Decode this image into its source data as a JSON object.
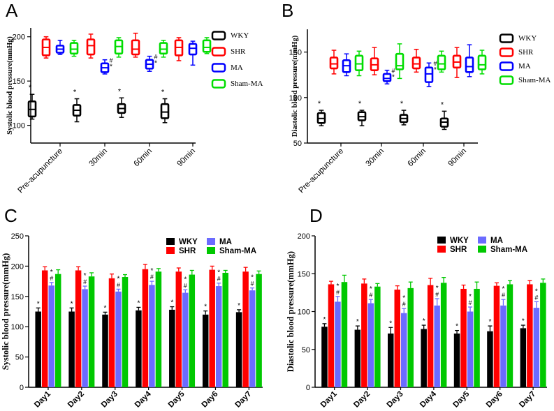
{
  "colors": {
    "wky": "#000000",
    "shr": "#ff0000",
    "ma_box": "#0000ff",
    "ma_bar": "#6b6bff",
    "sham": "#00dd00",
    "sham_bar": "#00c800",
    "axis": "#000000"
  },
  "chart_data": [
    {
      "panel": "A",
      "type": "box",
      "title": "",
      "xlabel": "",
      "ylabel": "Systolic blood pressure(mmHg)",
      "ylim": [
        80,
        210
      ],
      "yticks": [
        100,
        150,
        200
      ],
      "categories": [
        "Pre-acupuncture",
        "30min",
        "60min",
        "90min"
      ],
      "legend": [
        "WKY",
        "SHR",
        "MA",
        "Sham-MA"
      ],
      "legend_position": "right",
      "series": [
        {
          "name": "WKY",
          "boxes": [
            {
              "min": 107,
              "q1": 110,
              "median": 118,
              "q3": 127,
              "max": 135,
              "marks": "*"
            },
            {
              "min": 104,
              "q1": 111,
              "median": 117,
              "q3": 123,
              "max": 130,
              "marks": "*"
            },
            {
              "min": 109,
              "q1": 114,
              "median": 119,
              "q3": 124,
              "max": 131,
              "marks": "*"
            },
            {
              "min": 103,
              "q1": 108,
              "median": 115,
              "q3": 124,
              "max": 130,
              "marks": "*"
            }
          ]
        },
        {
          "name": "SHR",
          "boxes": [
            {
              "min": 176,
              "q1": 179,
              "median": 188,
              "q3": 197,
              "max": 200,
              "marks": ""
            },
            {
              "min": 176,
              "q1": 180,
              "median": 190,
              "q3": 197,
              "max": 203,
              "marks": ""
            },
            {
              "min": 177,
              "q1": 180,
              "median": 186,
              "q3": 196,
              "max": 204,
              "marks": ""
            },
            {
              "min": 173,
              "q1": 179,
              "median": 188,
              "q3": 196,
              "max": 199,
              "marks": ""
            }
          ]
        },
        {
          "name": "MA",
          "boxes": [
            {
              "min": 180,
              "q1": 182,
              "median": 186,
              "q3": 190,
              "max": 196,
              "marks": ""
            },
            {
              "min": 158,
              "q1": 160,
              "median": 165,
              "q3": 170,
              "max": 174,
              "marks": "#*"
            },
            {
              "min": 161,
              "q1": 164,
              "median": 169,
              "q3": 174,
              "max": 178,
              "marks": "#*"
            },
            {
              "min": 168,
              "q1": 180,
              "median": 187,
              "q3": 192,
              "max": 195,
              "marks": ""
            }
          ]
        },
        {
          "name": "Sham-MA",
          "boxes": [
            {
              "min": 178,
              "q1": 181,
              "median": 186,
              "q3": 193,
              "max": 196,
              "marks": ""
            },
            {
              "min": 177,
              "q1": 181,
              "median": 189,
              "q3": 196,
              "max": 199,
              "marks": ""
            },
            {
              "min": 177,
              "q1": 181,
              "median": 186,
              "q3": 193,
              "max": 196,
              "marks": ""
            },
            {
              "min": 181,
              "q1": 183,
              "median": 188,
              "q3": 196,
              "max": 199,
              "marks": ""
            }
          ]
        }
      ]
    },
    {
      "panel": "B",
      "type": "box",
      "title": "",
      "xlabel": "",
      "ylabel": "Diastolic blood pressure(mmHg)",
      "ylim": [
        50,
        175
      ],
      "yticks": [
        50,
        100,
        150
      ],
      "categories": [
        "Pre-acupuncture",
        "30min",
        "60min",
        "90min"
      ],
      "legend": [
        "WKY",
        "SHR",
        "MA",
        "Sham-MA"
      ],
      "legend_position": "right",
      "series": [
        {
          "name": "WKY",
          "boxes": [
            {
              "min": 69,
              "q1": 72,
              "median": 77,
              "q3": 83,
              "max": 86,
              "marks": "*"
            },
            {
              "min": 69,
              "q1": 75,
              "median": 79,
              "q3": 84,
              "max": 86,
              "marks": "*"
            },
            {
              "min": 70,
              "q1": 73,
              "median": 77,
              "q3": 81,
              "max": 86,
              "marks": "*"
            },
            {
              "min": 65,
              "q1": 68,
              "median": 73,
              "q3": 77,
              "max": 85,
              "marks": "*"
            }
          ]
        },
        {
          "name": "SHR",
          "boxes": [
            {
              "min": 126,
              "q1": 132,
              "median": 137,
              "q3": 144,
              "max": 152,
              "marks": ""
            },
            {
              "min": 125,
              "q1": 130,
              "median": 136,
              "q3": 143,
              "max": 155,
              "marks": ""
            },
            {
              "min": 128,
              "q1": 132,
              "median": 137,
              "q3": 144,
              "max": 153,
              "marks": ""
            },
            {
              "min": 122,
              "q1": 133,
              "median": 139,
              "q3": 146,
              "max": 155,
              "marks": ""
            }
          ]
        },
        {
          "name": "MA",
          "boxes": [
            {
              "min": 124,
              "q1": 128,
              "median": 135,
              "q3": 141,
              "max": 148,
              "marks": ""
            },
            {
              "min": 115,
              "q1": 118,
              "median": 121,
              "q3": 126,
              "max": 130,
              "marks": "#*"
            },
            {
              "min": 112,
              "q1": 117,
              "median": 126,
              "q3": 133,
              "max": 138,
              "marks": "#*"
            },
            {
              "min": 123,
              "q1": 128,
              "median": 134,
              "q3": 144,
              "max": 158,
              "marks": ""
            }
          ]
        },
        {
          "name": "Sham-MA",
          "boxes": [
            {
              "min": 124,
              "q1": 130,
              "median": 137,
              "q3": 146,
              "max": 151,
              "marks": ""
            },
            {
              "min": 121,
              "q1": 131,
              "median": 135,
              "q3": 148,
              "max": 159,
              "marks": ""
            },
            {
              "min": 128,
              "q1": 131,
              "median": 137,
              "q3": 146,
              "max": 151,
              "marks": ""
            },
            {
              "min": 126,
              "q1": 131,
              "median": 136,
              "q3": 146,
              "max": 152,
              "marks": ""
            }
          ]
        }
      ]
    },
    {
      "panel": "C",
      "type": "bar",
      "title": "",
      "xlabel": "",
      "ylabel": "Systolic blood pressure(mmHg)",
      "ylim": [
        0,
        250
      ],
      "yticks": [
        0,
        50,
        100,
        150,
        200,
        250
      ],
      "categories": [
        "Day1",
        "Day2",
        "Day3",
        "Day4",
        "Day5",
        "Day6",
        "Day7"
      ],
      "legend": [
        "WKY",
        "SHR",
        "MA",
        "Sham-MA"
      ],
      "legend_position": "top-right",
      "series": [
        {
          "name": "WKY",
          "values": [
            125,
            125,
            120,
            127,
            128,
            120,
            124
          ],
          "errors": [
            6,
            6,
            4,
            5,
            5,
            6,
            4
          ],
          "marks": [
            "*",
            "*",
            "*",
            "*",
            "*",
            "*",
            "*"
          ]
        },
        {
          "name": "SHR",
          "values": [
            193,
            193,
            180,
            195,
            191,
            194,
            191
          ],
          "errors": [
            6,
            6,
            7,
            8,
            6,
            6,
            7
          ],
          "marks": [
            "",
            "",
            "",
            "",
            "",
            "",
            ""
          ]
        },
        {
          "name": "MA",
          "values": [
            168,
            162,
            158,
            169,
            156,
            167,
            160
          ],
          "errors": [
            5,
            5,
            4,
            6,
            5,
            5,
            4
          ],
          "marks": [
            "*#",
            "*#",
            "*#",
            "*#",
            "*#",
            "*#",
            "*#"
          ]
        },
        {
          "name": "Sham-MA",
          "values": [
            187,
            183,
            182,
            191,
            186,
            189,
            187
          ],
          "errors": [
            7,
            6,
            4,
            5,
            7,
            4,
            5
          ],
          "marks": [
            "",
            "",
            "",
            "",
            "",
            "",
            ""
          ]
        }
      ]
    },
    {
      "panel": "D",
      "type": "bar",
      "title": "",
      "xlabel": "",
      "ylabel": "Diastolic blood pressure(mmHg)",
      "ylim": [
        0,
        200
      ],
      "yticks": [
        0,
        50,
        100,
        150,
        200
      ],
      "categories": [
        "Day1",
        "Day2",
        "Day3",
        "Day4",
        "Day5",
        "Day6",
        "Day7"
      ],
      "legend": [
        "WKY",
        "SHR",
        "MA",
        "Sham-MA"
      ],
      "legend_position": "top-right",
      "series": [
        {
          "name": "WKY",
          "values": [
            80,
            76,
            71,
            77,
            71,
            74,
            78
          ],
          "errors": [
            4,
            5,
            8,
            5,
            4,
            7,
            4
          ],
          "marks": [
            "*",
            "*",
            "*",
            "*",
            "*",
            "*",
            "*"
          ]
        },
        {
          "name": "SHR",
          "values": [
            136,
            137,
            129,
            135,
            130,
            134,
            136
          ],
          "errors": [
            4,
            6,
            5,
            9,
            5,
            4,
            5
          ],
          "marks": [
            "",
            "",
            "",
            "",
            "",
            "",
            ""
          ]
        },
        {
          "name": "MA",
          "values": [
            113,
            111,
            98,
            108,
            100,
            108,
            105
          ],
          "errors": [
            7,
            5,
            6,
            9,
            6,
            8,
            8
          ],
          "marks": [
            "*#",
            "*#",
            "*#",
            "*#",
            "*#",
            "*#",
            "*#"
          ]
        },
        {
          "name": "Sham-MA",
          "values": [
            139,
            133,
            131,
            138,
            130,
            136,
            138
          ],
          "errors": [
            9,
            4,
            8,
            7,
            9,
            5,
            5
          ],
          "marks": [
            "",
            "",
            "",
            "",
            "",
            "",
            ""
          ]
        }
      ]
    }
  ]
}
